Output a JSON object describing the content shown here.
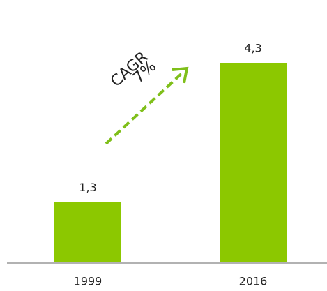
{
  "chart_data": {
    "type": "bar",
    "categories": [
      "1999",
      "2016"
    ],
    "values": [
      1.3,
      4.3
    ],
    "value_labels": [
      "1,3",
      "4,3"
    ],
    "color": "#8cc800",
    "annotations": [
      "CAGR",
      "7%"
    ]
  }
}
